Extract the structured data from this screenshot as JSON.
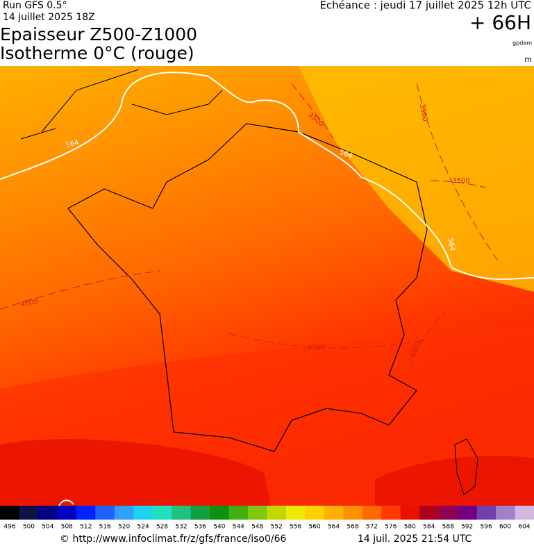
{
  "header": {
    "run": "Run GFS 0.5°",
    "run_date": "14 juillet 2025 18Z",
    "title_line1": "Epaisseur Z500-Z1000",
    "title_line2": "Isotherme 0°C (rouge)",
    "echeance": "Echéance : jeudi 17 juillet 2025 12h UTC",
    "lead_time": "+ 66H",
    "unit_thickness": "gpdam",
    "unit_iso": "m"
  },
  "map": {
    "contour_labels": [
      "564",
      "564",
      "564",
      "3500",
      "3500",
      "3500",
      "4500",
      "4500",
      "4500"
    ]
  },
  "colorbar": {
    "labels": [
      "496",
      "500",
      "504",
      "508",
      "512",
      "516",
      "520",
      "524",
      "528",
      "532",
      "536",
      "540",
      "544",
      "548",
      "552",
      "556",
      "560",
      "564",
      "568",
      "572",
      "576",
      "580",
      "584",
      "588",
      "592",
      "596",
      "600",
      "604"
    ],
    "colors": [
      "#000000",
      "#10104a",
      "#000080",
      "#0000c0",
      "#0020ff",
      "#2060ff",
      "#30a0ff",
      "#20d0f0",
      "#20e0c0",
      "#20c080",
      "#10a040",
      "#109010",
      "#40b010",
      "#80c810",
      "#c0d800",
      "#f0e800",
      "#ffd000",
      "#ffb000",
      "#ff9000",
      "#ff6a00",
      "#ff3800",
      "#e81000",
      "#b00020",
      "#900050",
      "#700080",
      "#7040b0",
      "#a080c8",
      "#d0b8e0"
    ]
  },
  "footer": {
    "url": "© http://www.infoclimat.fr/z/gfs/france/iso0/66",
    "timestamp": "14 juil. 2025 21:54 UTC"
  }
}
